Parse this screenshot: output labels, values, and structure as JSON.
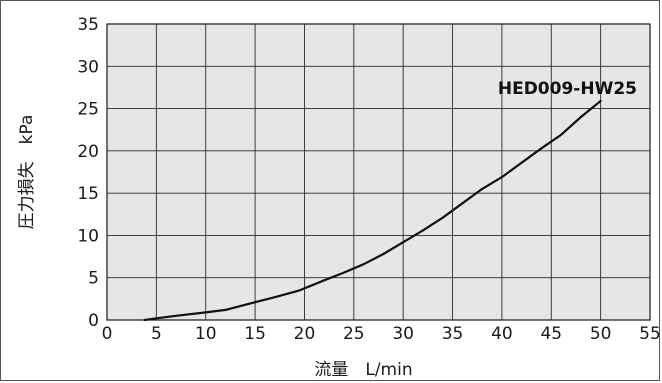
{
  "chart_data": {
    "type": "line",
    "xlabel": "流量　L/min",
    "ylabel": "圧力損失　kPa",
    "xlim": [
      0,
      55
    ],
    "ylim": [
      0,
      35
    ],
    "x_ticks": [
      "0",
      "5",
      "10",
      "15",
      "20",
      "25",
      "30",
      "35",
      "40",
      "45",
      "50",
      "55"
    ],
    "y_ticks": [
      "0",
      "5",
      "10",
      "15",
      "20",
      "25",
      "30",
      "35"
    ],
    "grid": true,
    "plot_background": "#e6e6e6",
    "line_color": "#111111",
    "series": [
      {
        "name": "HED009-HW25",
        "x": [
          3.8,
          5,
          7,
          10,
          12,
          15,
          17,
          19.5,
          22,
          24,
          26,
          28,
          30,
          32,
          34,
          36,
          38,
          40,
          42,
          44,
          46,
          48,
          50
        ],
        "y": [
          0,
          0.2,
          0.5,
          0.9,
          1.2,
          2.1,
          2.7,
          3.5,
          4.7,
          5.6,
          6.6,
          7.8,
          9.2,
          10.6,
          12.1,
          13.8,
          15.5,
          16.9,
          18.6,
          20.3,
          21.9,
          24.0,
          25.9
        ]
      }
    ]
  }
}
